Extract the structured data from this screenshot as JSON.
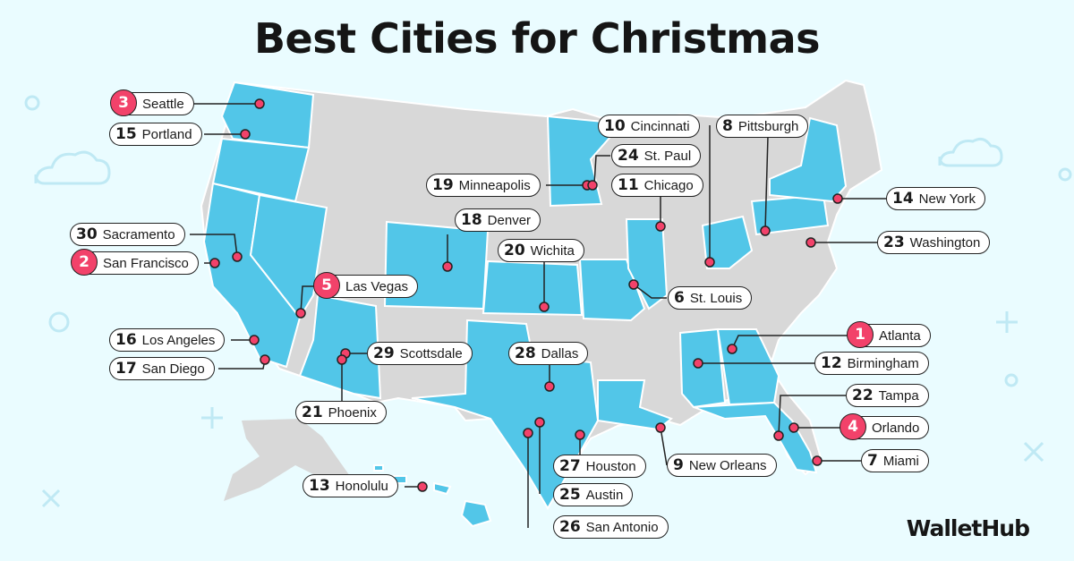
{
  "title": "Best Cities for Christmas",
  "brand": "WalletHub",
  "colors": {
    "background": "#eafcff",
    "highlight_state": "#52c6e8",
    "other_state": "#d8d8d8",
    "top5_badge": "#f2426a",
    "dot": "#f2426a"
  },
  "cities": [
    {
      "rank": "1",
      "name": "Atlanta"
    },
    {
      "rank": "2",
      "name": "San Francisco"
    },
    {
      "rank": "3",
      "name": "Seattle"
    },
    {
      "rank": "4",
      "name": "Orlando"
    },
    {
      "rank": "5",
      "name": "Las Vegas"
    },
    {
      "rank": "6",
      "name": "St. Louis"
    },
    {
      "rank": "7",
      "name": "Miami"
    },
    {
      "rank": "8",
      "name": "Pittsburgh"
    },
    {
      "rank": "9",
      "name": "New Orleans"
    },
    {
      "rank": "10",
      "name": "Cincinnati"
    },
    {
      "rank": "11",
      "name": "Chicago"
    },
    {
      "rank": "12",
      "name": "Birmingham"
    },
    {
      "rank": "13",
      "name": "Honolulu"
    },
    {
      "rank": "14",
      "name": "New York"
    },
    {
      "rank": "15",
      "name": "Portland"
    },
    {
      "rank": "16",
      "name": "Los Angeles"
    },
    {
      "rank": "17",
      "name": "San Diego"
    },
    {
      "rank": "18",
      "name": "Denver"
    },
    {
      "rank": "19",
      "name": "Minneapolis"
    },
    {
      "rank": "20",
      "name": "Wichita"
    },
    {
      "rank": "21",
      "name": "Phoenix"
    },
    {
      "rank": "22",
      "name": "Tampa"
    },
    {
      "rank": "23",
      "name": "Washington"
    },
    {
      "rank": "24",
      "name": "St. Paul"
    },
    {
      "rank": "25",
      "name": "Austin"
    },
    {
      "rank": "26",
      "name": "San Antonio"
    },
    {
      "rank": "27",
      "name": "Houston"
    },
    {
      "rank": "28",
      "name": "Dallas"
    },
    {
      "rank": "29",
      "name": "Scottsdale"
    },
    {
      "rank": "30",
      "name": "Sacramento"
    }
  ]
}
